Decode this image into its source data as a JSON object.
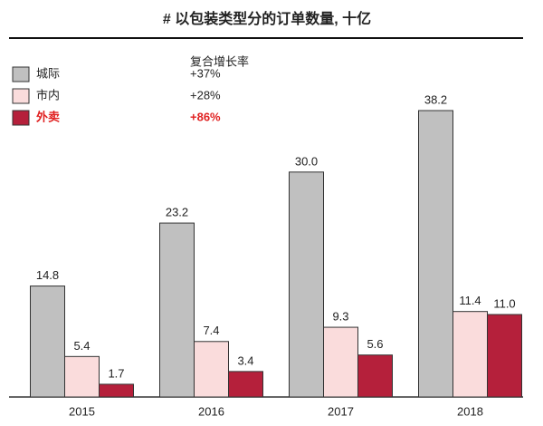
{
  "chart_data": {
    "type": "bar",
    "title": "# 以包装类型分的订单数量, 十亿",
    "categories": [
      "2015",
      "2016",
      "2017",
      "2018"
    ],
    "legend_header": "复合增长率",
    "series": [
      {
        "name": "城际",
        "color": "#c0c0c0",
        "cagr": "+37%",
        "values": [
          14.8,
          23.2,
          30.0,
          38.2
        ],
        "value_labels": [
          "14.8",
          "23.2",
          "30.0",
          "38.2"
        ]
      },
      {
        "name": "市内",
        "color": "#fadcdc",
        "cagr": "+28%",
        "values": [
          5.4,
          7.4,
          9.3,
          11.4
        ]
      },
      {
        "name": "外卖",
        "color": "#b5203b",
        "cagr": "+86%",
        "values": [
          1.7,
          3.4,
          5.6,
          11.0
        ],
        "value_labels": [
          "1.7",
          "3.4",
          "5.6",
          "11.0"
        ]
      }
    ]
  }
}
